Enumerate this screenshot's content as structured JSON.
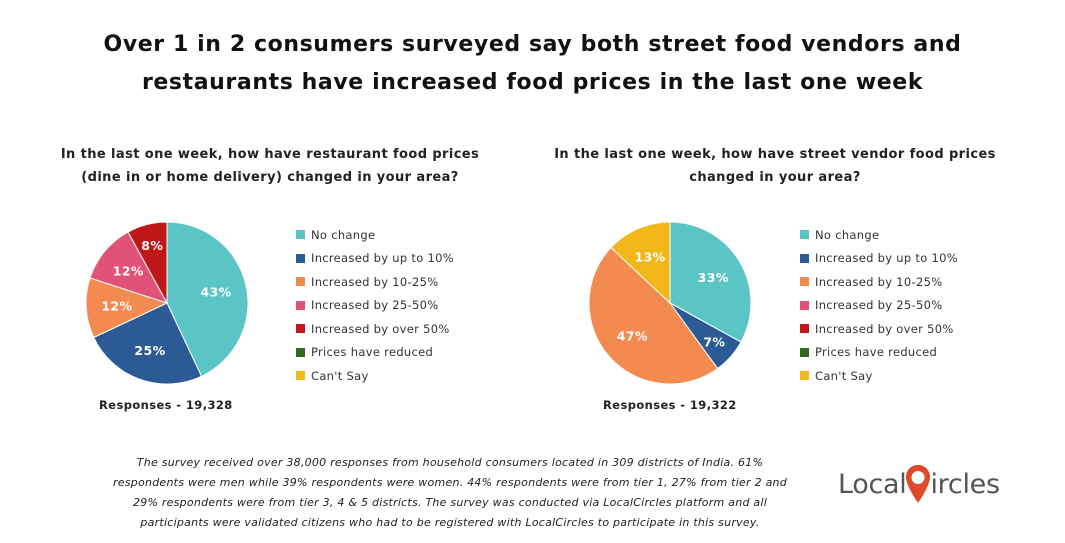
{
  "title_line1": "Over 1 in 2 consumers surveyed say both street food vendors and",
  "title_line2": "restaurants have increased food prices in the last one week",
  "chart_data": [
    {
      "type": "pie",
      "title_line1": "In the last one week, how have restaurant food prices",
      "title_line2": "(dine in or home delivery) changed in your area?",
      "responses": "Responses - 19,328",
      "slices": [
        {
          "label": "No change",
          "value": 43,
          "color": "#5bc5c5"
        },
        {
          "label": "Increased by up to 10%",
          "value": 25,
          "color": "#2c5a95"
        },
        {
          "label": "Increased by 10-25%",
          "value": 12,
          "color": "#f38a4f"
        },
        {
          "label": "Increased by 25-50%",
          "value": 12,
          "color": "#e05278"
        },
        {
          "label": "Increased by over 50%",
          "value": 8,
          "color": "#c01818"
        },
        {
          "label": "Prices have reduced",
          "value": 0,
          "color": "#2e6b1f"
        },
        {
          "label": "Can't Say",
          "value": 0,
          "color": "#f2b719"
        }
      ]
    },
    {
      "type": "pie",
      "title_line1": "In the last one week, how have street vendor food prices",
      "title_line2": "changed in your area?",
      "responses": "Responses - 19,322",
      "slices": [
        {
          "label": "No change",
          "value": 33,
          "color": "#5bc5c5"
        },
        {
          "label": "Increased by up to 10%",
          "value": 7,
          "color": "#2c5a95"
        },
        {
          "label": "Increased by 10-25%",
          "value": 47,
          "color": "#f38a4f"
        },
        {
          "label": "Increased by 25-50%",
          "value": 0,
          "color": "#e05278"
        },
        {
          "label": "Increased by over 50%",
          "value": 0,
          "color": "#c01818"
        },
        {
          "label": "Prices have reduced",
          "value": 0,
          "color": "#2e6b1f"
        },
        {
          "label": "Can't Say",
          "value": 13,
          "color": "#f2b719"
        }
      ]
    }
  ],
  "footnote": {
    "line1": "The survey received over 38,000 responses from household consumers located in 309 districts of India. 61%",
    "line2": "respondents were men while 39% respondents were women. 44% respondents were from tier 1, 27% from tier 2 and",
    "line3": "29% respondents were from tier 3, 4 & 5 districts. The survey was conducted via LocalCircles platform and all",
    "line4": "participants were validated citizens who had to be registered with LocalCircles to participate in this survey."
  },
  "logo": {
    "part1": "Local",
    "part2": "ircles",
    "pin_color": "#e04a28"
  }
}
